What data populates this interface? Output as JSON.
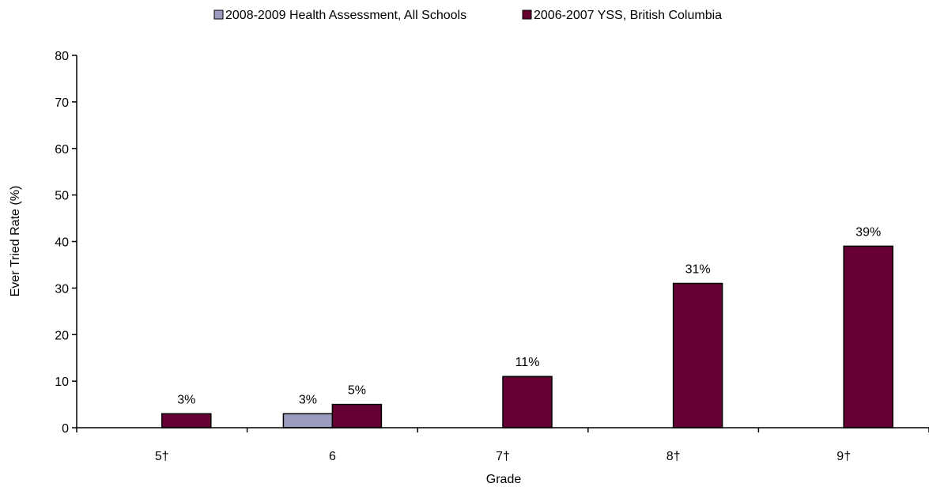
{
  "chart_data": {
    "type": "bar",
    "title": "",
    "xlabel": "Grade",
    "ylabel": "Ever Tried Rate (%)",
    "ylim": [
      0,
      80
    ],
    "yticks": [
      0,
      10,
      20,
      30,
      40,
      50,
      60,
      70,
      80
    ],
    "categories": [
      "5†",
      "6",
      "7†",
      "8†",
      "9†"
    ],
    "series": [
      {
        "name": "2008-2009 Health Assessment, All Schools",
        "color": "#9b9bbf",
        "values": [
          null,
          3,
          null,
          null,
          null
        ],
        "labels": [
          null,
          "3%",
          null,
          null,
          null
        ]
      },
      {
        "name": "2006-2007 YSS, British Columbia",
        "color": "#660033",
        "values": [
          3,
          5,
          11,
          31,
          39
        ],
        "labels": [
          "3%",
          "5%",
          "11%",
          "31%",
          "39%"
        ]
      }
    ],
    "legend": "top-center",
    "grid": false
  }
}
